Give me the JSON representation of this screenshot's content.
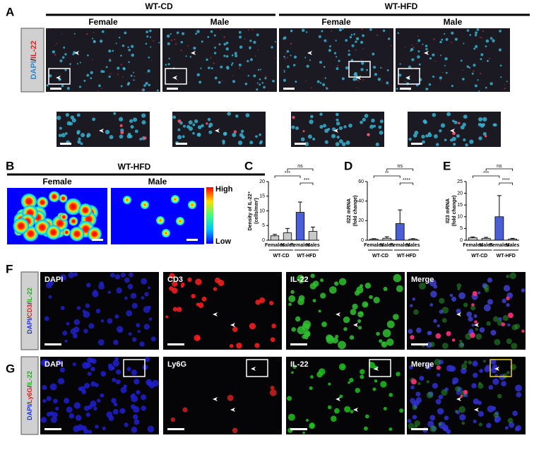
{
  "figure": {
    "A": {
      "label": "A",
      "groups": [
        "WT-CD",
        "WT-HFD"
      ],
      "columns": [
        "Female",
        "Male",
        "Female",
        "Male"
      ],
      "stain": [
        "DAPI",
        "/",
        "IL-22"
      ]
    },
    "B": {
      "label": "B",
      "group": "WT-HFD",
      "columns": [
        "Female",
        "Male"
      ],
      "scale": [
        "High",
        "Low"
      ]
    },
    "F": {
      "label": "F",
      "stain": [
        "DAPI",
        "/",
        "CD3",
        "/",
        "IL-22"
      ],
      "columns": [
        "DAPI",
        "CD3",
        "IL-22",
        "Merge"
      ]
    },
    "G": {
      "label": "G",
      "stain": [
        "DAPI",
        "/",
        "Ly6G",
        "/",
        "IL-22"
      ],
      "columns": [
        "DAPI",
        "Ly6G",
        "IL-22",
        "Merge"
      ]
    }
  },
  "chart_data": [
    {
      "type": "bar",
      "panel": "C",
      "y_label": [
        "Density of IL-22⁺",
        "(cells/mm²)"
      ],
      "categories": [
        "Females",
        "Males",
        "Females",
        "Males"
      ],
      "groups": [
        "WT-CD",
        "WT-HFD"
      ],
      "values": [
        1.5,
        2.5,
        9.5,
        3
      ],
      "errors": [
        0.5,
        1.5,
        3.5,
        1.5
      ],
      "colors": [
        "#c8c8c8",
        "#c8c8c8",
        "#4a5fd6",
        "#c8c8c8"
      ],
      "ylim": [
        0,
        20
      ],
      "yticks": [
        0,
        5,
        10,
        15,
        20
      ],
      "significance": [
        "***",
        "ns",
        "***"
      ]
    },
    {
      "type": "bar",
      "panel": "D",
      "y_label": [
        "Il22 mRNA",
        "(fold change)"
      ],
      "categories": [
        "Females",
        "Males",
        "Females",
        "Males"
      ],
      "groups": [
        "WT-CD",
        "WT-HFD"
      ],
      "values": [
        1,
        2,
        17,
        1
      ],
      "errors": [
        0.5,
        1.5,
        14,
        0.5
      ],
      "colors": [
        "#c8c8c8",
        "#c8c8c8",
        "#4a5fd6",
        "#c8c8c8"
      ],
      "ylim": [
        0,
        60
      ],
      "yticks": [
        0,
        20,
        40,
        60
      ],
      "significance": [
        "**",
        "ns",
        "****"
      ]
    },
    {
      "type": "bar",
      "panel": "E",
      "y_label": [
        "Il23 mRNA",
        "(fold change)"
      ],
      "categories": [
        "Females",
        "Males",
        "Females",
        "Males"
      ],
      "groups": [
        "WT-CD",
        "WT-HFD"
      ],
      "values": [
        1,
        0.8,
        10,
        0.5
      ],
      "errors": [
        0.4,
        0.4,
        9,
        0.3
      ],
      "colors": [
        "#c8c8c8",
        "#c8c8c8",
        "#4a5fd6",
        "#c8c8c8"
      ],
      "ylim": [
        0,
        25
      ],
      "yticks": [
        0,
        5,
        10,
        15,
        20,
        25
      ],
      "significance": [
        "***",
        "ns",
        "****"
      ]
    }
  ]
}
